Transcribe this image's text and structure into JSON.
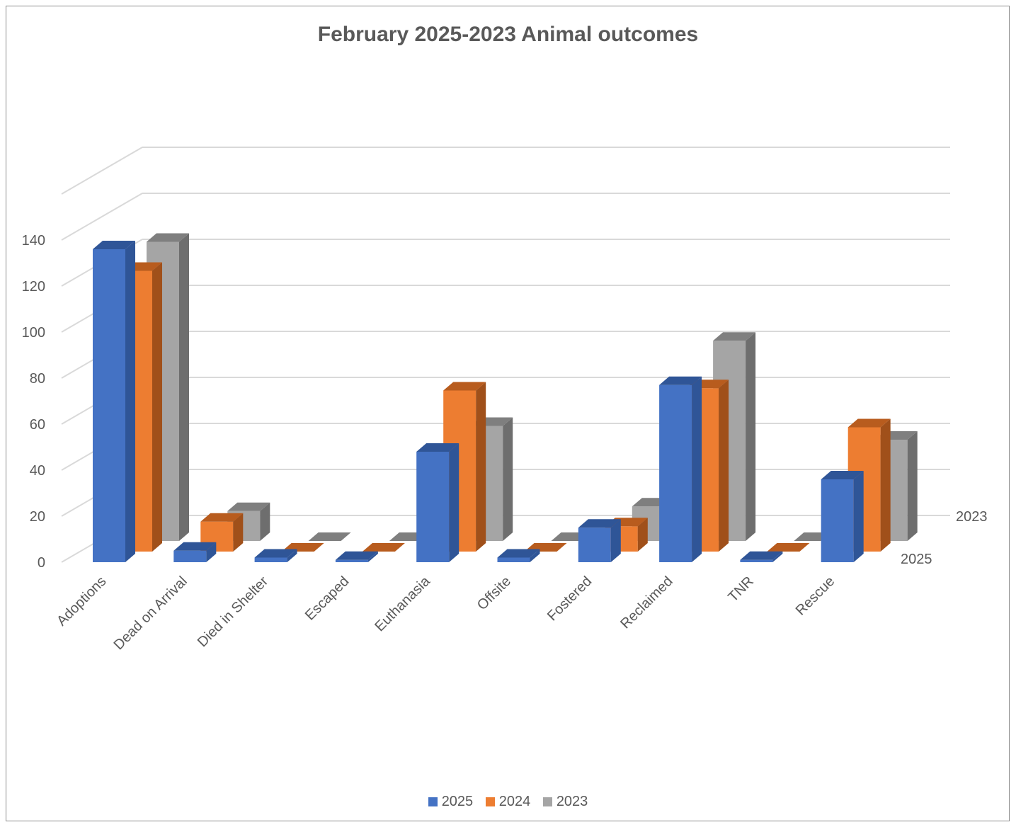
{
  "chart_data": {
    "type": "bar",
    "style": "3d-clustered-column",
    "title": "February 2025-2023 Animal outcomes",
    "categories": [
      "Adoptions",
      "Dead on Arrival",
      "Died in Shelter",
      "Escaped",
      "Euthanasia",
      "Offsite",
      "Fostered",
      "Reclaimed",
      "TNR",
      "Rescue"
    ],
    "series": [
      {
        "name": "2025",
        "color": "#4472C4",
        "side": "#2F5597",
        "top": "#2F5597",
        "values": [
          136,
          5,
          2,
          1,
          48,
          2,
          15,
          77,
          1,
          36
        ]
      },
      {
        "name": "2024",
        "color": "#ED7D31",
        "side": "#A0501A",
        "top": "#B85C1E",
        "values": [
          122,
          13,
          0,
          0,
          70,
          0,
          11,
          71,
          0,
          54
        ]
      },
      {
        "name": "2023",
        "color": "#A5A5A5",
        "side": "#6E6E6E",
        "top": "#7F7F7F",
        "values": [
          130,
          13,
          0,
          0,
          50,
          0,
          15,
          87,
          0,
          44
        ]
      }
    ],
    "y_ticks": [
      "0",
      "20",
      "40",
      "60",
      "80",
      "100",
      "120",
      "140"
    ],
    "ylim": [
      0,
      140
    ],
    "depth_labels": [
      "2023",
      "2025"
    ],
    "legend": "bottom",
    "grid": true
  }
}
